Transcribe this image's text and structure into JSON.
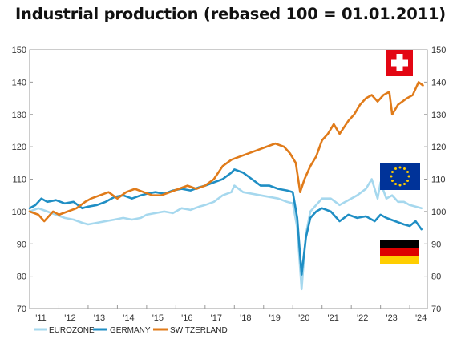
{
  "chart_data": {
    "type": "line",
    "title": "Industrial production (rebased 100 = 01.01.2011)",
    "xlabel": "",
    "ylabel": "",
    "ylim": [
      70,
      150
    ],
    "yticks": [
      70,
      80,
      90,
      100,
      110,
      120,
      130,
      140,
      150
    ],
    "xlim": [
      2011.0,
      2024.6
    ],
    "xticks": [
      2011,
      2012,
      2013,
      2014,
      2015,
      2016,
      2017,
      2018,
      2019,
      2020,
      2021,
      2022,
      2023,
      2024
    ],
    "xtick_labels": [
      "'11",
      "'12",
      "'13",
      "'14",
      "'15",
      "'16",
      "'17",
      "'18",
      "'19",
      "'20",
      "'21",
      "'22",
      "'23",
      "'24"
    ],
    "grid": false,
    "y_axis_both_sides": true,
    "legend_position": "bottom-left",
    "series": [
      {
        "name": "EUROZONE",
        "color": "#a6d8ee",
        "points": [
          [
            2011.0,
            100
          ],
          [
            2011.3,
            101
          ],
          [
            2011.6,
            100
          ],
          [
            2011.9,
            99
          ],
          [
            2012.2,
            98
          ],
          [
            2012.5,
            97.5
          ],
          [
            2012.8,
            96.5
          ],
          [
            2013.0,
            96
          ],
          [
            2013.3,
            96.5
          ],
          [
            2013.6,
            97
          ],
          [
            2013.9,
            97.5
          ],
          [
            2014.2,
            98
          ],
          [
            2014.5,
            97.5
          ],
          [
            2014.8,
            98
          ],
          [
            2015.0,
            99
          ],
          [
            2015.3,
            99.5
          ],
          [
            2015.6,
            100
          ],
          [
            2015.9,
            99.5
          ],
          [
            2016.2,
            101
          ],
          [
            2016.5,
            100.5
          ],
          [
            2016.8,
            101.5
          ],
          [
            2017.0,
            102
          ],
          [
            2017.3,
            103
          ],
          [
            2017.6,
            105
          ],
          [
            2017.9,
            106
          ],
          [
            2018.0,
            108
          ],
          [
            2018.3,
            106
          ],
          [
            2018.6,
            105.5
          ],
          [
            2018.9,
            105
          ],
          [
            2019.2,
            104.5
          ],
          [
            2019.5,
            104
          ],
          [
            2019.8,
            103
          ],
          [
            2020.0,
            102.5
          ],
          [
            2020.15,
            95
          ],
          [
            2020.3,
            76
          ],
          [
            2020.45,
            93
          ],
          [
            2020.6,
            100
          ],
          [
            2020.8,
            102
          ],
          [
            2021.0,
            104
          ],
          [
            2021.3,
            104
          ],
          [
            2021.6,
            102
          ],
          [
            2021.9,
            103.5
          ],
          [
            2022.2,
            105
          ],
          [
            2022.5,
            107
          ],
          [
            2022.7,
            110
          ],
          [
            2022.9,
            104
          ],
          [
            2023.0,
            109
          ],
          [
            2023.2,
            104
          ],
          [
            2023.4,
            105
          ],
          [
            2023.6,
            103
          ],
          [
            2023.8,
            103
          ],
          [
            2024.0,
            102
          ],
          [
            2024.2,
            101.5
          ],
          [
            2024.4,
            101
          ]
        ]
      },
      {
        "name": "GERMANY",
        "color": "#1f8ec4",
        "points": [
          [
            2011.0,
            101
          ],
          [
            2011.2,
            102
          ],
          [
            2011.4,
            104
          ],
          [
            2011.6,
            103
          ],
          [
            2011.9,
            103.5
          ],
          [
            2012.2,
            102.5
          ],
          [
            2012.5,
            103
          ],
          [
            2012.8,
            101
          ],
          [
            2013.0,
            101.5
          ],
          [
            2013.3,
            102
          ],
          [
            2013.6,
            103
          ],
          [
            2013.9,
            104.5
          ],
          [
            2014.2,
            105
          ],
          [
            2014.5,
            104
          ],
          [
            2014.8,
            105
          ],
          [
            2015.0,
            105.5
          ],
          [
            2015.3,
            106
          ],
          [
            2015.6,
            105.5
          ],
          [
            2015.9,
            106.5
          ],
          [
            2016.2,
            107
          ],
          [
            2016.5,
            106.5
          ],
          [
            2016.8,
            107.5
          ],
          [
            2017.0,
            108
          ],
          [
            2017.3,
            109
          ],
          [
            2017.6,
            110
          ],
          [
            2017.9,
            112
          ],
          [
            2018.0,
            113
          ],
          [
            2018.3,
            112
          ],
          [
            2018.6,
            110
          ],
          [
            2018.9,
            108
          ],
          [
            2019.2,
            108
          ],
          [
            2019.5,
            107
          ],
          [
            2019.8,
            106.5
          ],
          [
            2020.0,
            106
          ],
          [
            2020.15,
            98
          ],
          [
            2020.3,
            80.5
          ],
          [
            2020.45,
            92
          ],
          [
            2020.6,
            98
          ],
          [
            2020.8,
            100
          ],
          [
            2021.0,
            101
          ],
          [
            2021.3,
            100
          ],
          [
            2021.6,
            97
          ],
          [
            2021.9,
            99
          ],
          [
            2022.2,
            98
          ],
          [
            2022.5,
            98.5
          ],
          [
            2022.8,
            97
          ],
          [
            2023.0,
            99
          ],
          [
            2023.2,
            98
          ],
          [
            2023.5,
            97
          ],
          [
            2023.8,
            96
          ],
          [
            2024.0,
            95.5
          ],
          [
            2024.2,
            97
          ],
          [
            2024.4,
            94.5
          ]
        ]
      },
      {
        "name": "SWITZERLAND",
        "color": "#e07b1a",
        "points": [
          [
            2011.0,
            100
          ],
          [
            2011.3,
            99
          ],
          [
            2011.5,
            97
          ],
          [
            2011.8,
            100
          ],
          [
            2012.0,
            99
          ],
          [
            2012.3,
            100
          ],
          [
            2012.6,
            101
          ],
          [
            2012.9,
            103
          ],
          [
            2013.1,
            104
          ],
          [
            2013.4,
            105
          ],
          [
            2013.7,
            106
          ],
          [
            2014.0,
            104
          ],
          [
            2014.3,
            106
          ],
          [
            2014.6,
            107
          ],
          [
            2014.9,
            106
          ],
          [
            2015.2,
            105
          ],
          [
            2015.5,
            105
          ],
          [
            2015.8,
            106
          ],
          [
            2016.1,
            107
          ],
          [
            2016.4,
            108
          ],
          [
            2016.7,
            107
          ],
          [
            2017.0,
            108
          ],
          [
            2017.3,
            110
          ],
          [
            2017.6,
            114
          ],
          [
            2017.9,
            116
          ],
          [
            2018.2,
            117
          ],
          [
            2018.5,
            118
          ],
          [
            2018.8,
            119
          ],
          [
            2019.1,
            120
          ],
          [
            2019.4,
            121
          ],
          [
            2019.7,
            120
          ],
          [
            2019.9,
            118
          ],
          [
            2020.1,
            115
          ],
          [
            2020.25,
            106
          ],
          [
            2020.4,
            110
          ],
          [
            2020.6,
            114
          ],
          [
            2020.8,
            117
          ],
          [
            2021.0,
            122
          ],
          [
            2021.2,
            124
          ],
          [
            2021.4,
            127
          ],
          [
            2021.6,
            124
          ],
          [
            2021.9,
            128
          ],
          [
            2022.1,
            130
          ],
          [
            2022.3,
            133
          ],
          [
            2022.5,
            135
          ],
          [
            2022.7,
            136
          ],
          [
            2022.9,
            134
          ],
          [
            2023.1,
            136
          ],
          [
            2023.3,
            137
          ],
          [
            2023.4,
            130
          ],
          [
            2023.6,
            133
          ],
          [
            2023.9,
            135
          ],
          [
            2024.1,
            136
          ],
          [
            2024.3,
            140
          ],
          [
            2024.45,
            139
          ]
        ]
      }
    ],
    "flags": [
      {
        "icon": "switzerland-flag-icon",
        "colors": [
          "#e30613",
          "#ffffff"
        ]
      },
      {
        "icon": "eu-flag-icon",
        "colors": [
          "#003399",
          "#ffcc00"
        ]
      },
      {
        "icon": "germany-flag-icon",
        "colors": [
          "#000000",
          "#dd0000",
          "#ffce00"
        ]
      }
    ]
  }
}
